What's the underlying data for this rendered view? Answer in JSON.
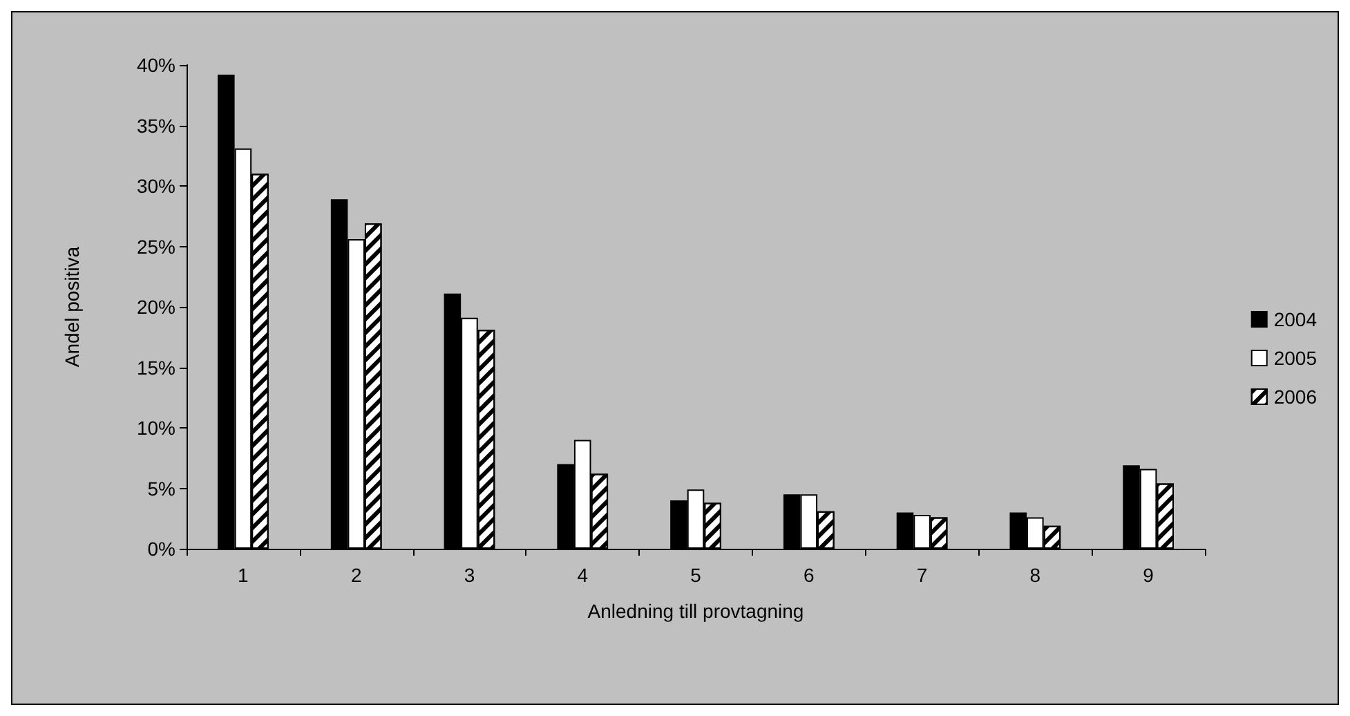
{
  "chart_data": {
    "type": "bar",
    "xlabel": "Anledning till provtagning",
    "ylabel": "Andel positiva",
    "categories": [
      "1",
      "2",
      "3",
      "4",
      "5",
      "6",
      "7",
      "8",
      "9"
    ],
    "series": [
      {
        "name": "2004",
        "color": "#000000",
        "values": [
          39.2,
          28.9,
          21.1,
          7.0,
          4.0,
          4.5,
          3.0,
          3.0,
          6.9
        ]
      },
      {
        "name": "2005",
        "color": "#ffffff",
        "values": [
          33.1,
          25.6,
          19.1,
          9.0,
          4.9,
          4.5,
          2.8,
          2.6,
          6.6
        ]
      },
      {
        "name": "2006",
        "color": "#ffffff",
        "values": [
          31.0,
          26.9,
          18.1,
          6.2,
          3.8,
          3.1,
          2.6,
          1.9,
          5.4
        ]
      }
    ],
    "ylim": [
      0,
      40
    ],
    "yticks": [
      {
        "value": 0,
        "label": "0%"
      },
      {
        "value": 5,
        "label": "5%"
      },
      {
        "value": 10,
        "label": "10%"
      },
      {
        "value": 15,
        "label": "15%"
      },
      {
        "value": 20,
        "label": "20%"
      },
      {
        "value": 25,
        "label": "25%"
      },
      {
        "value": 30,
        "label": "30%"
      },
      {
        "value": 35,
        "label": "35%"
      },
      {
        "value": 40,
        "label": "40%"
      }
    ],
    "grid": false,
    "legend": "right"
  }
}
